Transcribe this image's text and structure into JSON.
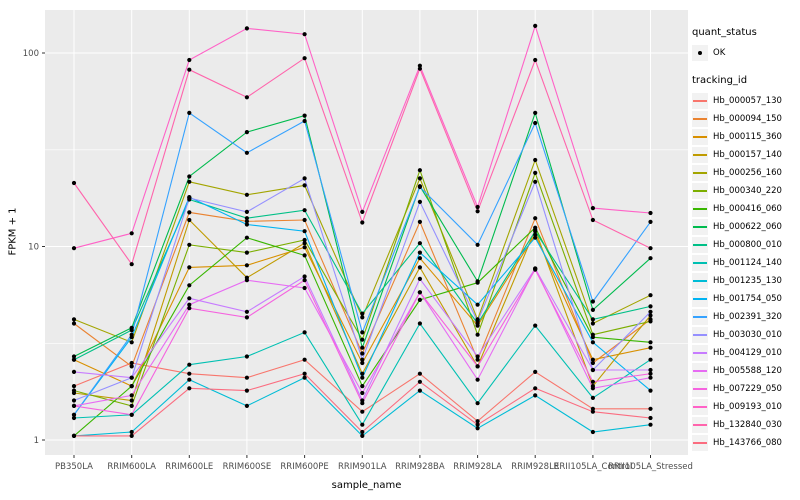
{
  "legend": {
    "quant_status": {
      "title": "quant_status",
      "items": [
        {
          "label": "OK",
          "symbol": "black-point"
        }
      ]
    },
    "tracking_id": {
      "title": "tracking_id"
    }
  },
  "chart_data": {
    "type": "line",
    "title": "",
    "xlabel": "sample_name",
    "ylabel": "FPKM + 1",
    "y_scale": "log10",
    "y_ticks": [
      1,
      10,
      100
    ],
    "y_minor": [
      3.162,
      31.62
    ],
    "ylim": [
      0.95,
      160
    ],
    "grid": true,
    "legend_position": "right",
    "panel_background": "#EBEBEB",
    "gridline_color": "#FFFFFF",
    "point_color": "#000000",
    "tick_color": "#333333",
    "tick_label_color": "#4D4D4D",
    "categories": [
      "PB350LA",
      "RRIM600LA",
      "RRIM600LE",
      "RRIM600SE",
      "RRIM600PE",
      "RRIM901LA",
      "RRIM928BA",
      "RRIM928LA",
      "RRIM928LE",
      "RRII105LA_Control",
      "RRII105LA_Stressed"
    ],
    "series": [
      {
        "name": "Hb_000057_130",
        "color": "#F8766D",
        "values": [
          1.9,
          2.5,
          2.2,
          2.1,
          2.6,
          1.4,
          2.2,
          1.25,
          2.25,
          1.45,
          1.45
        ]
      },
      {
        "name": "Hb_000094_150",
        "color": "#EA8331",
        "values": [
          4.0,
          2.4,
          15.0,
          13.5,
          13.7,
          2.8,
          13.4,
          2.6,
          14.0,
          2.5,
          4.2
        ]
      },
      {
        "name": "Hb_000115_360",
        "color": "#D89000",
        "values": [
          2.6,
          1.9,
          7.8,
          8.0,
          9.9,
          2.5,
          8.7,
          3.9,
          11.5,
          2.6,
          3.0
        ]
      },
      {
        "name": "Hb_000157_140",
        "color": "#C09B00",
        "values": [
          1.75,
          1.6,
          13.7,
          6.9,
          10.4,
          2.2,
          7.8,
          2.4,
          12.2,
          1.9,
          4.4
        ]
      },
      {
        "name": "Hb_000256_160",
        "color": "#A3A500",
        "values": [
          4.2,
          3.2,
          21.6,
          18.5,
          20.7,
          4.3,
          22.5,
          4.2,
          28.0,
          4.0,
          5.6
        ]
      },
      {
        "name": "Hb_000340_220",
        "color": "#7CAE00",
        "values": [
          1.8,
          1.5,
          10.2,
          9.3,
          10.8,
          3.3,
          24.8,
          3.5,
          24.0,
          3.5,
          4.1
        ]
      },
      {
        "name": "Hb_000416_060",
        "color": "#39B600",
        "values": [
          1.05,
          1.9,
          6.3,
          11.1,
          9.0,
          1.9,
          5.3,
          6.5,
          12.5,
          3.4,
          3.2
        ]
      },
      {
        "name": "Hb_000622_060",
        "color": "#00BB4E",
        "values": [
          2.7,
          3.8,
          23.0,
          39.0,
          47.5,
          3.0,
          20.5,
          6.6,
          49.0,
          4.7,
          8.7
        ]
      },
      {
        "name": "Hb_000800_010",
        "color": "#00C087",
        "values": [
          2.6,
          3.7,
          17.5,
          14.0,
          15.4,
          4.5,
          10.4,
          4.0,
          12.0,
          4.2,
          4.9
        ]
      },
      {
        "name": "Hb_001124_140",
        "color": "#00C0B2",
        "values": [
          1.3,
          1.35,
          2.45,
          2.7,
          3.6,
          1.2,
          4.0,
          1.55,
          3.9,
          1.65,
          2.6
        ]
      },
      {
        "name": "Hb_001235_130",
        "color": "#00BCD6",
        "values": [
          1.05,
          1.1,
          2.05,
          1.5,
          2.1,
          1.05,
          1.8,
          1.15,
          1.7,
          1.1,
          1.2
        ]
      },
      {
        "name": "Hb_001754_050",
        "color": "#00B3F2",
        "values": [
          1.35,
          3.4,
          18.0,
          13.0,
          12.0,
          2.1,
          9.3,
          5.0,
          11.1,
          3.2,
          1.8
        ]
      },
      {
        "name": "Hb_002391_320",
        "color": "#35A2FF",
        "values": [
          1.35,
          3.5,
          49.0,
          30.5,
          44.5,
          3.6,
          20.3,
          10.2,
          43.5,
          5.2,
          13.4
        ]
      },
      {
        "name": "Hb_003030_010",
        "color": "#9590FF",
        "values": [
          1.6,
          2.1,
          17.8,
          15.1,
          22.5,
          2.6,
          17.0,
          4.1,
          21.6,
          2.3,
          4.6
        ]
      },
      {
        "name": "Hb_004129_010",
        "color": "#C77CFF",
        "values": [
          2.25,
          2.1,
          5.4,
          4.6,
          7.0,
          1.6,
          6.8,
          2.7,
          7.7,
          2.3,
          2.3
        ]
      },
      {
        "name": "Hb_005588_120",
        "color": "#E76BF3",
        "values": [
          1.5,
          1.7,
          5.0,
          6.7,
          6.1,
          1.75,
          5.8,
          2.05,
          7.7,
          1.85,
          2.1
        ]
      },
      {
        "name": "Hb_007229_050",
        "color": "#F563DF",
        "values": [
          1.5,
          1.35,
          4.8,
          4.3,
          6.7,
          1.55,
          5.8,
          2.4,
          7.6,
          2.0,
          2.2
        ]
      },
      {
        "name": "Hb_009193_010",
        "color": "#FF62C7",
        "values": [
          9.8,
          11.7,
          92.0,
          134.0,
          125.0,
          15.1,
          86.0,
          16.0,
          138.0,
          15.8,
          14.9
        ]
      },
      {
        "name": "Hb_132840_030",
        "color": "#FF64AC",
        "values": [
          21.3,
          8.1,
          82.0,
          59.0,
          94.0,
          13.3,
          83.0,
          15.2,
          92.0,
          13.7,
          9.8
        ]
      },
      {
        "name": "Hb_143766_080",
        "color": "#FB6D80",
        "values": [
          1.05,
          1.05,
          1.85,
          1.8,
          2.2,
          1.1,
          2.0,
          1.2,
          1.85,
          1.4,
          1.3
        ]
      }
    ]
  }
}
